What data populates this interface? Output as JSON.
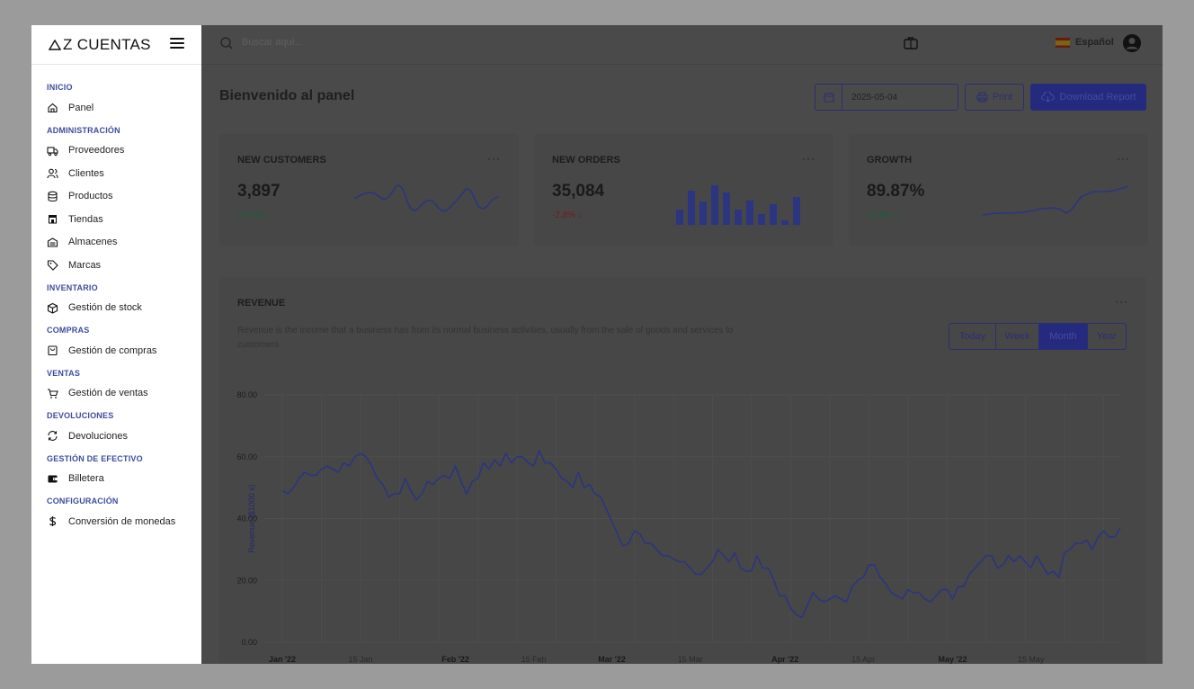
{
  "brand": {
    "name": "Z CUENTAS"
  },
  "sidebar": {
    "sections": [
      {
        "title": "INICIO",
        "items": [
          {
            "label": "Panel",
            "icon": "home-icon"
          }
        ]
      },
      {
        "title": "ADMINISTRACIÓN",
        "items": [
          {
            "label": "Proveedores",
            "icon": "truck-icon"
          },
          {
            "label": "Clientes",
            "icon": "users-icon"
          },
          {
            "label": "Productos",
            "icon": "database-icon"
          },
          {
            "label": "Tiendas",
            "icon": "store-icon"
          },
          {
            "label": "Almacenes",
            "icon": "warehouse-icon"
          },
          {
            "label": "Marcas",
            "icon": "tag-icon"
          }
        ]
      },
      {
        "title": "INVENTARIO",
        "items": [
          {
            "label": "Gestión de stock",
            "icon": "box-icon"
          }
        ]
      },
      {
        "title": "COMPRAS",
        "items": [
          {
            "label": "Gestión de compras",
            "icon": "shopping-bag-icon"
          }
        ]
      },
      {
        "title": "VENTAS",
        "items": [
          {
            "label": "Gestión de ventas",
            "icon": "cart-icon"
          }
        ]
      },
      {
        "title": "DEVOLUCIONES",
        "items": [
          {
            "label": "Devoluciones",
            "icon": "refresh-icon"
          }
        ]
      },
      {
        "title": "GESTIÓN DE EFECTIVO",
        "items": [
          {
            "label": "Billetera",
            "icon": "wallet-icon"
          }
        ]
      },
      {
        "title": "CONFIGURACIÓN",
        "items": [
          {
            "label": "Conversión de monedas",
            "icon": "dollar-icon"
          }
        ]
      }
    ]
  },
  "topbar": {
    "search_placeholder": "Buscar aquí...",
    "language": "Español"
  },
  "page": {
    "title": "Bienvenido al panel",
    "date": "2025-05-04",
    "print_label": "Print",
    "download_label": "Download Report"
  },
  "cards": [
    {
      "title": "NEW CUSTOMERS",
      "value": "3,897",
      "delta": "+3.3%",
      "direction": "up",
      "menu": "···"
    },
    {
      "title": "NEW ORDERS",
      "value": "35,084",
      "delta": "-2.8%",
      "direction": "down",
      "menu": "···"
    },
    {
      "title": "GROWTH",
      "value": "89.87%",
      "delta": "+2.8%",
      "direction": "up",
      "menu": "···"
    }
  ],
  "revenue": {
    "title": "REVENUE",
    "menu": "···",
    "description": "Revenue is the income that a business has from its normal business activities, usually from the sale of goods and services to customers.",
    "ranges": [
      "Today",
      "Week",
      "Month",
      "Year"
    ],
    "active_range": "Month"
  },
  "colors": {
    "accent": "#242a7e",
    "line": "#2b3580",
    "up": "#1a5e3a",
    "down": "#6e1e1e"
  },
  "chart_data": {
    "type": "line",
    "ylabel": "Revenue ($1000 x)",
    "ylim": [
      0,
      80
    ],
    "yticks": [
      "0.00",
      "20.00",
      "40.00",
      "60.00",
      "80.00"
    ],
    "xticks": [
      {
        "label": "Jan '22",
        "bold": true,
        "day": 0
      },
      {
        "label": "15 Jan",
        "bold": false,
        "day": 14
      },
      {
        "label": "Feb '22",
        "bold": true,
        "day": 31
      },
      {
        "label": "15 Feb",
        "bold": false,
        "day": 45
      },
      {
        "label": "Mar '22",
        "bold": true,
        "day": 59
      },
      {
        "label": "15 Mar",
        "bold": false,
        "day": 73
      },
      {
        "label": "Apr '22",
        "bold": true,
        "day": 90
      },
      {
        "label": "15 Apr",
        "bold": false,
        "day": 104
      },
      {
        "label": "May '22",
        "bold": true,
        "day": 120
      },
      {
        "label": "15 May",
        "bold": false,
        "day": 134
      }
    ],
    "grid": true,
    "series": [
      {
        "values": [
          49,
          48,
          50,
          53,
          55,
          54,
          54,
          56,
          57,
          56,
          55,
          58,
          57,
          60,
          61,
          60,
          57,
          53,
          51,
          47,
          48,
          48,
          53,
          49,
          46,
          48,
          52,
          51,
          53,
          54,
          53,
          57,
          52,
          48,
          52,
          53,
          58,
          56,
          59,
          57,
          61,
          58,
          60,
          60,
          58,
          57,
          62,
          58,
          58,
          56,
          53,
          52,
          50,
          55,
          50,
          51,
          48,
          47,
          43,
          39,
          35,
          31,
          32,
          36,
          35,
          32,
          32,
          30,
          28,
          28,
          27,
          26,
          26,
          24,
          22,
          22,
          24,
          26,
          30,
          28,
          26,
          29,
          24,
          23,
          23,
          28,
          24,
          24,
          20,
          15,
          15,
          11,
          9,
          8,
          12,
          16,
          14,
          13,
          14,
          15,
          14,
          13,
          18,
          20,
          21,
          25,
          25,
          21,
          19,
          16,
          15,
          14,
          17,
          16,
          16,
          14,
          13,
          15,
          17,
          17,
          14,
          18,
          18,
          22,
          24,
          26,
          28,
          28,
          24,
          25,
          28,
          26,
          28,
          26,
          24,
          28,
          25,
          22,
          23,
          21,
          29,
          30,
          32,
          32,
          33,
          30,
          34,
          36,
          34,
          34,
          37
        ]
      }
    ]
  }
}
